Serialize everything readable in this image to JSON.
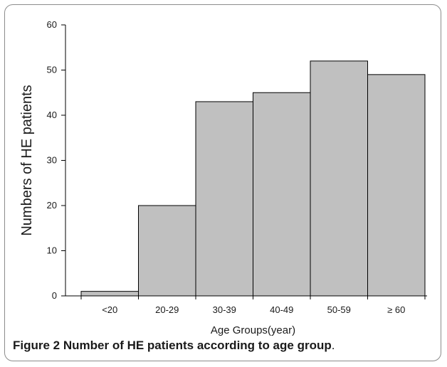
{
  "caption": {
    "label": "Figure 2",
    "text": "Number of HE patients according to age group",
    "end": "."
  },
  "chart_data": {
    "type": "bar",
    "title": "",
    "xlabel": "Age Groups(year)",
    "ylabel": "Numbers of HE patients",
    "categories": [
      "<20",
      "20-29",
      "30-39",
      "40-49",
      "50-59",
      "≥ 60"
    ],
    "values": [
      1,
      20,
      43,
      45,
      52,
      49
    ],
    "ylim": [
      0,
      60
    ],
    "yticks": [
      0,
      10,
      20,
      30,
      40,
      50,
      60
    ],
    "bar_color": "#c0c0c0",
    "bar_edge_color": "#000000",
    "grid": false,
    "legend": "none"
  }
}
